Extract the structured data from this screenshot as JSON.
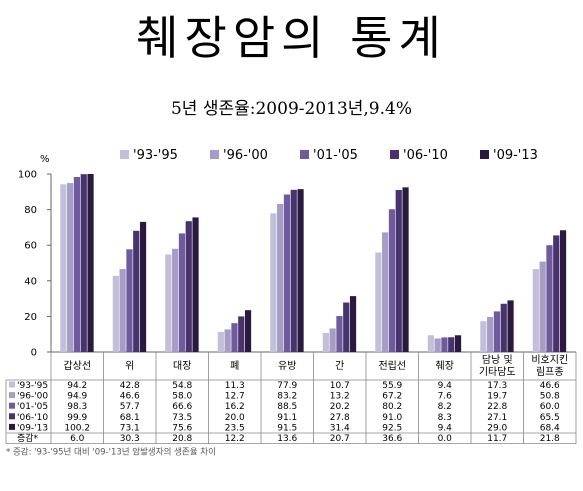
{
  "title": "췌장암의 통계",
  "subtitle": "5년 생존율:2009-2013년,9.4%",
  "colors": [
    "#c4bfd9",
    "#a69cc6",
    "#6f5a9d",
    "#47346e",
    "#2a1a40"
  ],
  "chart_data": {
    "type": "bar",
    "yunit": "%",
    "ylim": [
      0,
      100
    ],
    "yticks": [
      "0",
      "20",
      "40",
      "60",
      "80",
      "100"
    ],
    "grid": false,
    "legend_position": "top-right",
    "categories": [
      "갑상선",
      "위",
      "대장",
      "폐",
      "유방",
      "간",
      "전립선",
      "췌장",
      "담낭 및 기타담도",
      "비호지킨 림프종"
    ],
    "category_lines": [
      [
        "갑상선"
      ],
      [
        "위"
      ],
      [
        "대장"
      ],
      [
        "폐"
      ],
      [
        "유방"
      ],
      [
        "간"
      ],
      [
        "전립선"
      ],
      [
        "췌장"
      ],
      [
        "담낭 및",
        "기타담도"
      ],
      [
        "비호지킨",
        "림프종"
      ]
    ],
    "series": [
      {
        "name": "'93-'95",
        "values": [
          94.2,
          42.8,
          54.8,
          11.3,
          77.9,
          10.7,
          55.9,
          9.4,
          17.3,
          46.6
        ]
      },
      {
        "name": "'96-'00",
        "values": [
          94.9,
          46.6,
          58.0,
          12.7,
          83.2,
          13.2,
          67.2,
          7.6,
          19.7,
          50.8
        ]
      },
      {
        "name": "'01-'05",
        "values": [
          98.3,
          57.7,
          66.6,
          16.2,
          88.5,
          20.2,
          80.2,
          8.2,
          22.8,
          60.0
        ]
      },
      {
        "name": "'06-'10",
        "values": [
          99.9,
          68.1,
          73.5,
          20.0,
          91.1,
          27.8,
          91.0,
          8.3,
          27.1,
          65.5
        ]
      },
      {
        "name": "'09-'13",
        "values": [
          100.2,
          73.1,
          75.6,
          23.5,
          91.5,
          31.4,
          92.5,
          9.4,
          29.0,
          68.4
        ]
      }
    ],
    "table_rows": [
      {
        "label": "'93-'95",
        "values": [
          "94.2",
          "42.8",
          "54.8",
          "11.3",
          "77.9",
          "10.7",
          "55.9",
          "9.4",
          "17.3",
          "46.6"
        ]
      },
      {
        "label": "'96-'00",
        "values": [
          "94.9",
          "46.6",
          "58.0",
          "12.7",
          "83.2",
          "13.2",
          "67.2",
          "7.6",
          "19.7",
          "50.8"
        ]
      },
      {
        "label": "'01-'05",
        "values": [
          "98.3",
          "57.7",
          "66.6",
          "16.2",
          "88.5",
          "20.2",
          "80.2",
          "8.2",
          "22.8",
          "60.0"
        ]
      },
      {
        "label": "'06-'10",
        "values": [
          "99.9",
          "68.1",
          "73.5",
          "20.0",
          "91.1",
          "27.8",
          "91.0",
          "8.3",
          "27.1",
          "65.5"
        ]
      },
      {
        "label": "'09-'13",
        "values": [
          "100.2",
          "73.1",
          "75.6",
          "23.5",
          "91.5",
          "31.4",
          "92.5",
          "9.4",
          "29.0",
          "68.4"
        ]
      },
      {
        "label": "증감*",
        "values": [
          "6.0",
          "30.3",
          "20.8",
          "12.2",
          "13.6",
          "20.7",
          "36.6",
          "0.0",
          "11.7",
          "21.8"
        ]
      }
    ],
    "footnote": "* 증감: '93-'95년 대비 '09-'13년 암발생자의 생존율 차이"
  }
}
